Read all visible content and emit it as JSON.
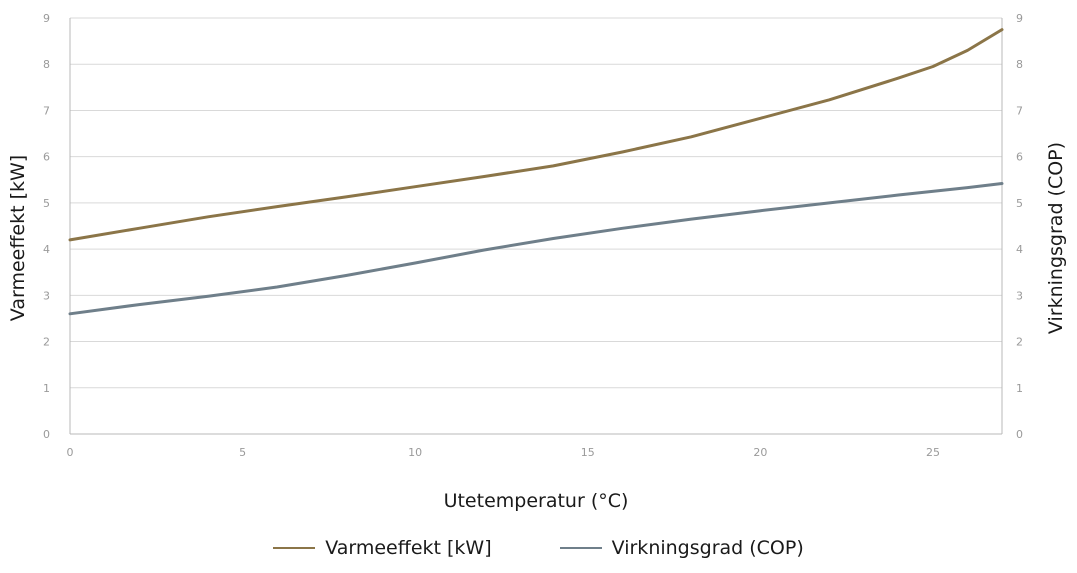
{
  "colors": {
    "grid": "#d9d9d9",
    "axis": "#b8b8b8"
  },
  "chart_data": {
    "type": "line",
    "xlabel": "Utetemperatur (°C)",
    "ylabel_left": "Varmeeffekt [kW]",
    "ylabel_right": "Virkningsgrad (COP)",
    "xlim": [
      0,
      27
    ],
    "ylim_left": [
      0,
      9
    ],
    "ylim_right": [
      0,
      9
    ],
    "x_ticks": [
      0,
      5,
      10,
      15,
      20,
      25
    ],
    "y_ticks": [
      0,
      1,
      2,
      3,
      4,
      5,
      6,
      7,
      8,
      9
    ],
    "grid": true,
    "legend_position": "bottom",
    "series": [
      {
        "name": "Varmeeffekt [kW]",
        "axis": "left",
        "color": "#8b7548",
        "x": [
          0,
          2,
          4,
          6,
          8,
          10,
          12,
          14,
          16,
          18,
          20,
          22,
          24,
          25,
          26,
          27
        ],
        "y": [
          4.2,
          4.45,
          4.7,
          4.92,
          5.13,
          5.35,
          5.57,
          5.8,
          6.1,
          6.43,
          6.83,
          7.23,
          7.7,
          7.95,
          8.3,
          8.75
        ]
      },
      {
        "name": "Virkningsgrad (COP)",
        "axis": "right",
        "color": "#6f7f8a",
        "x": [
          0,
          2,
          4,
          6,
          8,
          10,
          12,
          14,
          16,
          18,
          20,
          22,
          24,
          26,
          27
        ],
        "y": [
          2.6,
          2.8,
          2.98,
          3.18,
          3.43,
          3.7,
          3.98,
          4.23,
          4.45,
          4.65,
          4.83,
          5.0,
          5.17,
          5.33,
          5.42
        ]
      }
    ]
  }
}
